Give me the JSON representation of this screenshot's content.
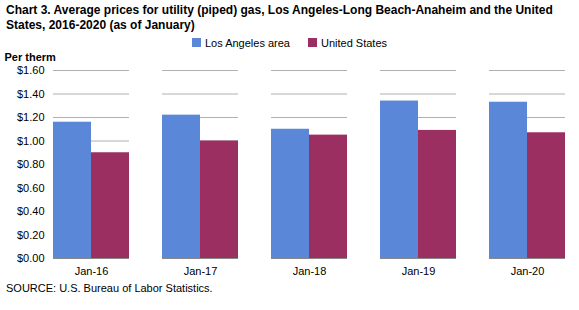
{
  "chart_data": {
    "type": "bar",
    "title": "Chart 3. Average prices for utility (piped) gas, Los Angeles-Long Beach-Anaheim and the United States, 2016-2020 (as of January)",
    "y_label": "Per therm",
    "source": "SOURCE: U.S. Bureau of Labor Statistics.",
    "categories": [
      "Jan-16",
      "Jan-17",
      "Jan-18",
      "Jan-19",
      "Jan-20"
    ],
    "series": [
      {
        "name": "Los Angeles area",
        "color": "#5b87d8",
        "values": [
          1.16,
          1.22,
          1.1,
          1.34,
          1.33
        ]
      },
      {
        "name": "United States",
        "color": "#9b2f61",
        "values": [
          0.9,
          1.0,
          1.05,
          1.09,
          1.07
        ]
      }
    ],
    "ylim": [
      0,
      1.6
    ],
    "yticks": [
      {
        "value": 0,
        "label": "$0.00"
      },
      {
        "value": 0.2,
        "label": "$0.20"
      },
      {
        "value": 0.4,
        "label": "$0.40"
      },
      {
        "value": 0.6,
        "label": "$0.60"
      },
      {
        "value": 0.8,
        "label": "$0.80"
      },
      {
        "value": 1.0,
        "label": "$1.00"
      },
      {
        "value": 1.2,
        "label": "$1.20"
      },
      {
        "value": 1.4,
        "label": "$1.40"
      },
      {
        "value": 1.6,
        "label": "$1.60"
      }
    ],
    "grid": true,
    "legend": "top"
  }
}
